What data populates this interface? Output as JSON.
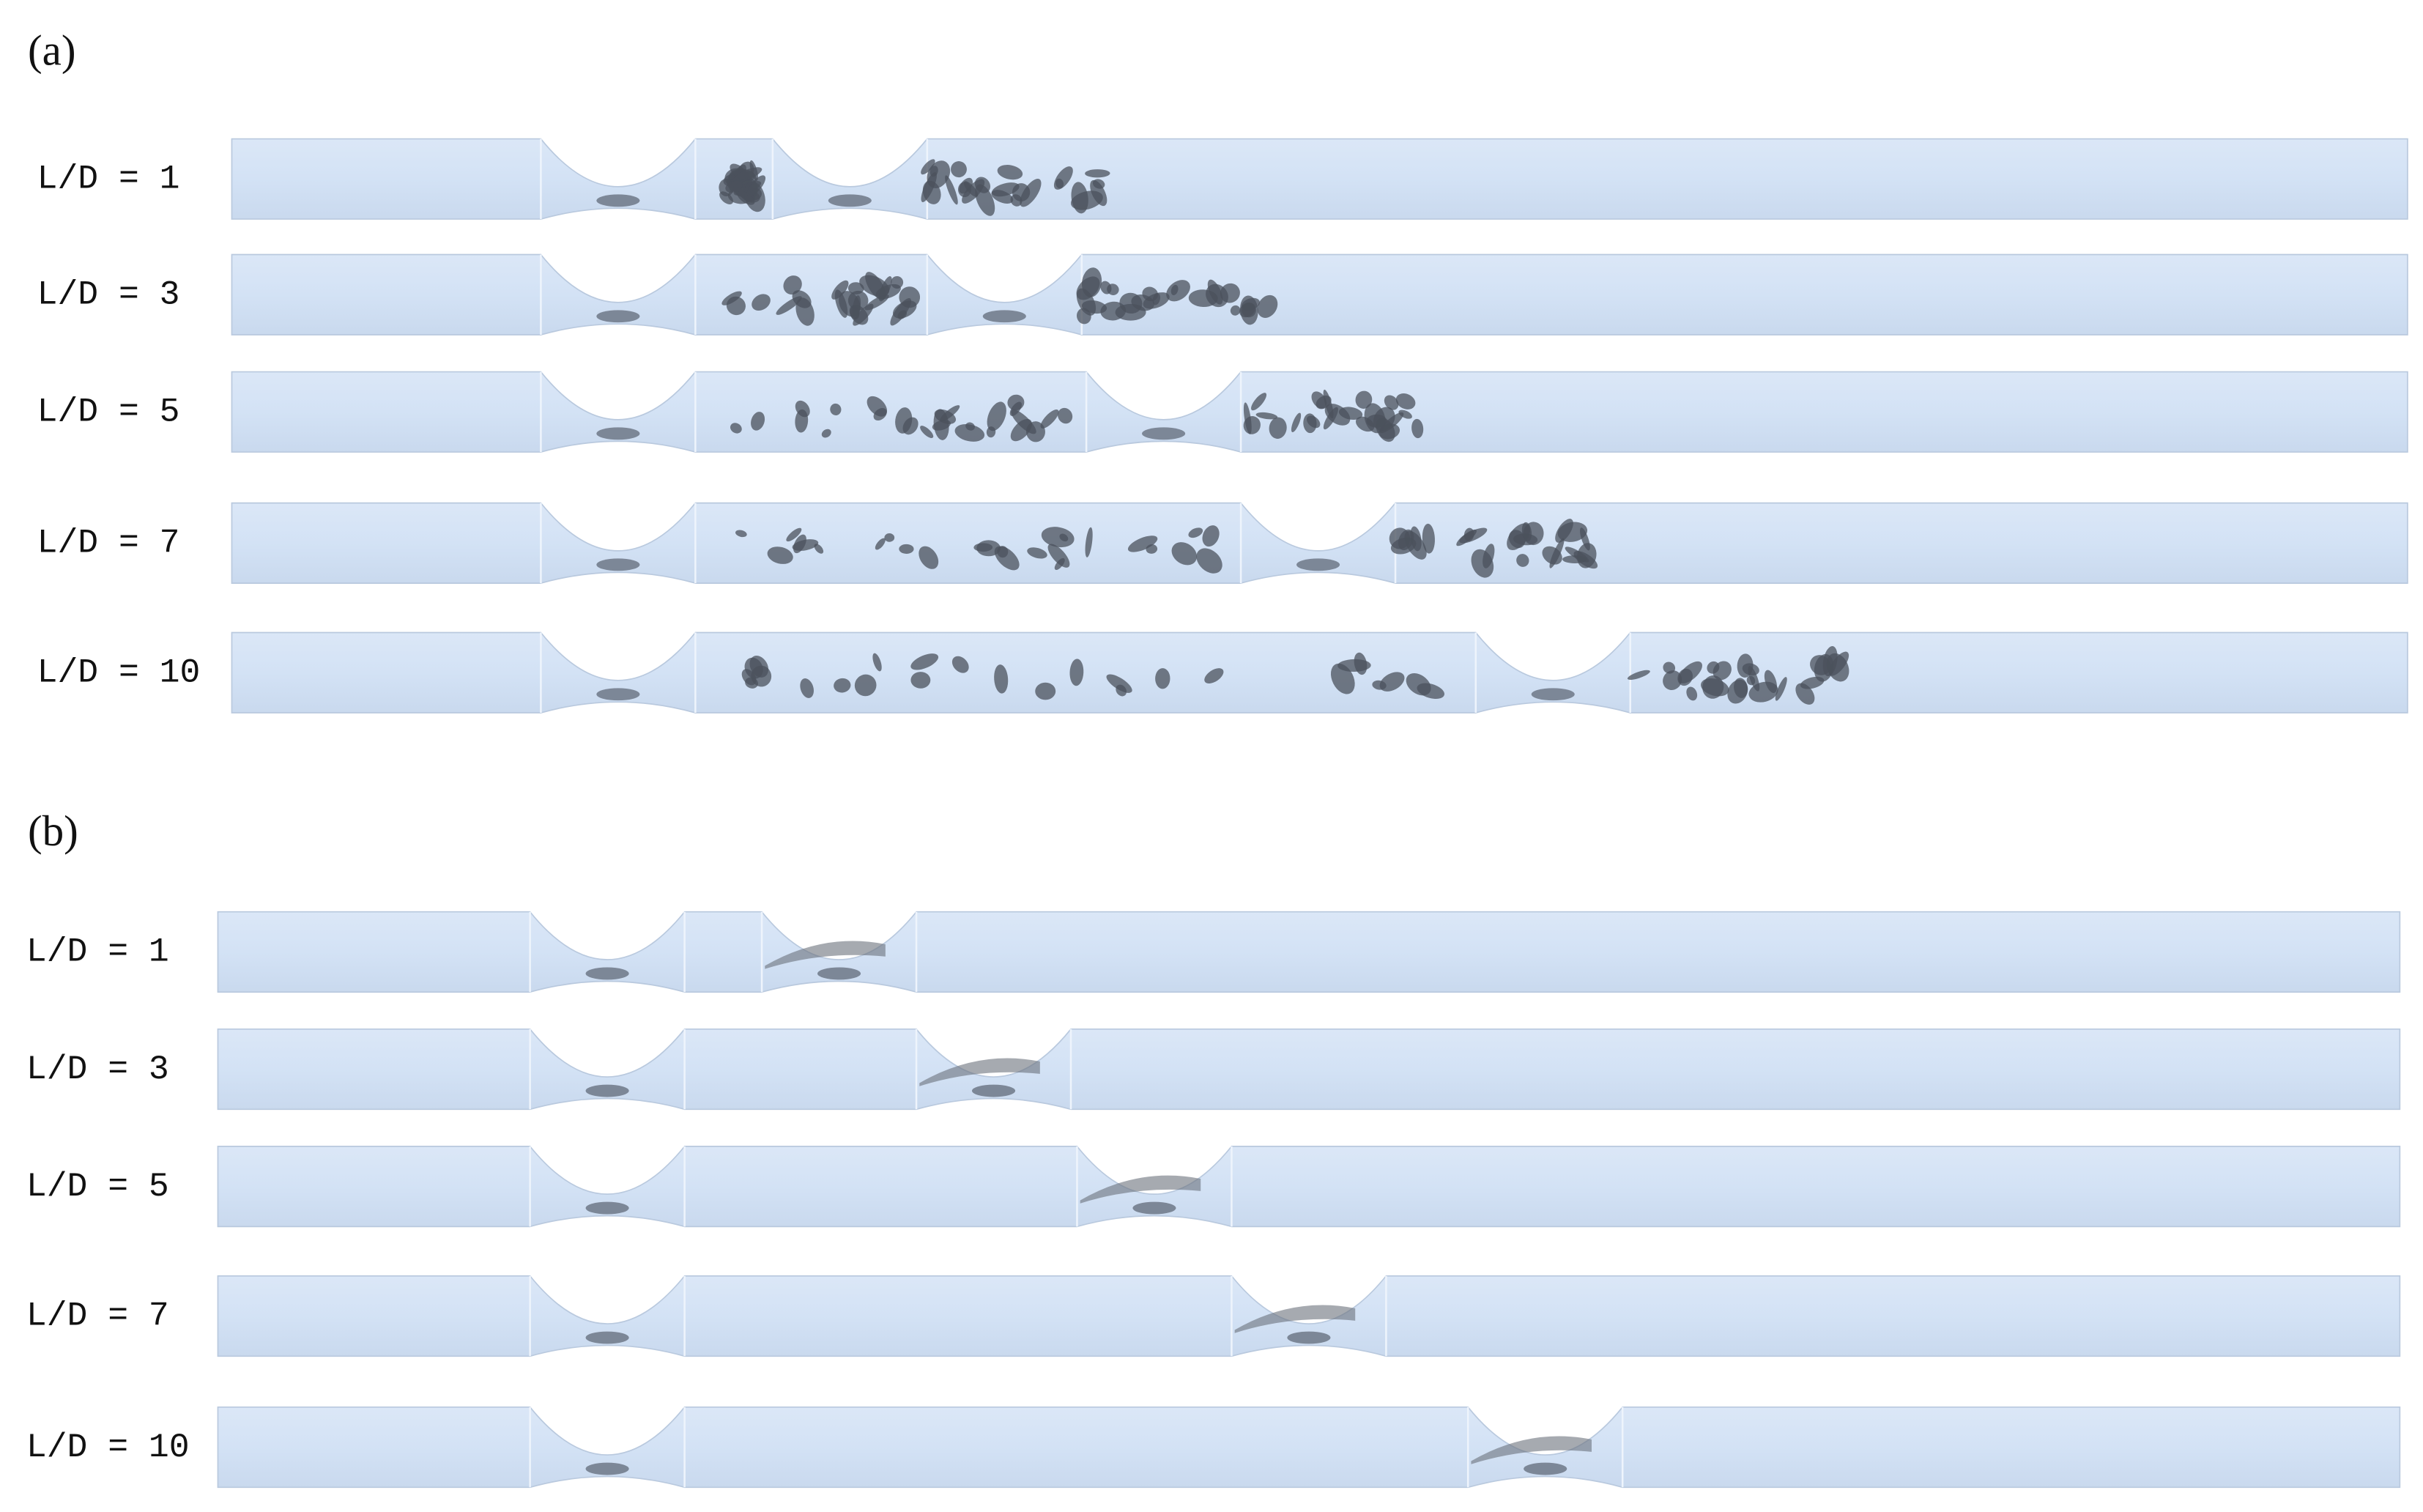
{
  "panels": [
    {
      "label": "(a)",
      "rows": [
        "L/D = 1",
        "L/D = 3",
        "L/D = 5",
        "L/D = 7",
        "L/D = 10"
      ]
    },
    {
      "label": "(b)",
      "rows": [
        "L/D = 1",
        "L/D = 3",
        "L/D = 5",
        "L/D = 7",
        "L/D = 10"
      ]
    }
  ]
}
